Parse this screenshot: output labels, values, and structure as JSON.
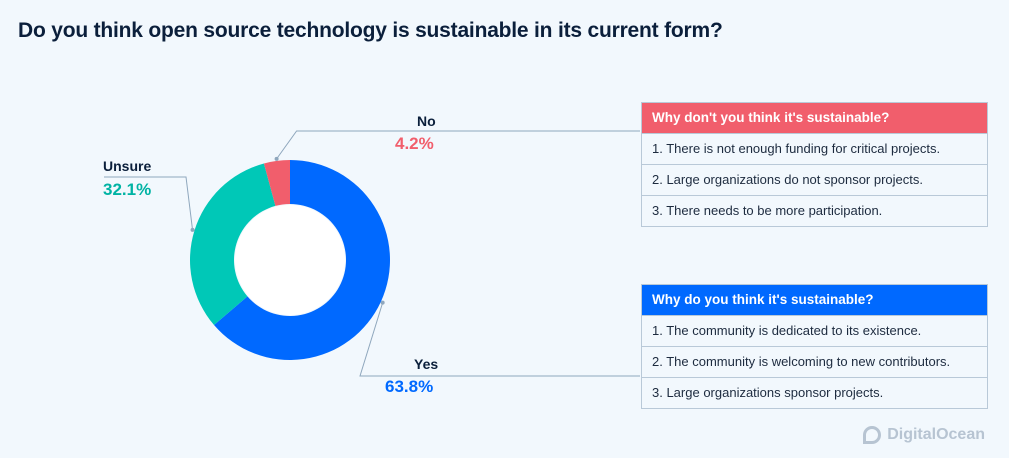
{
  "title": "Do you think open source technology is sustainable in its current form?",
  "chart_data": {
    "type": "pie",
    "subtype": "donut",
    "slices": [
      {
        "label": "Yes",
        "value": 63.8,
        "display": "63.8%",
        "color": "#0069ff"
      },
      {
        "label": "Unsure",
        "value": 32.1,
        "display": "32.1%",
        "color": "#00c8b7"
      },
      {
        "label": "No",
        "value": 4.2,
        "display": "4.2%",
        "color": "#f15e6c"
      }
    ]
  },
  "panels": {
    "no": {
      "header": "Why don't you think it's sustainable?",
      "color": "#f15e6c",
      "items": [
        "1. There is not enough funding for critical projects.",
        "2. Large organizations do not sponsor projects.",
        "3. There needs to be more participation."
      ]
    },
    "yes": {
      "header": "Why do you think it's sustainable?",
      "color": "#0069ff",
      "items": [
        "1. The community is dedicated to its existence.",
        "2. The community is welcoming to new contributors.",
        "3. Large organizations sponsor projects."
      ]
    }
  },
  "logo": {
    "text": "DigitalOcean",
    "icon": "digitalocean-logo-icon"
  },
  "colors": {
    "background": "#f2f8fd",
    "title": "#0b1f3b",
    "leader_line": "#8fa7bd"
  }
}
